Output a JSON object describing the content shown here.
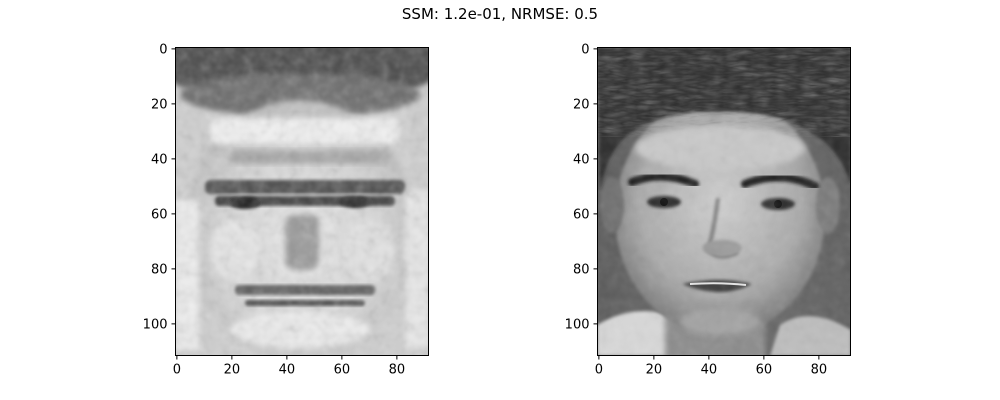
{
  "figure": {
    "title": "SSM: 1.2e-01, NRMSE: 0.5"
  },
  "chart_data": [
    {
      "type": "heatmap",
      "title": "",
      "xlabel": "",
      "ylabel": "",
      "xlim": [
        -0.5,
        91.5
      ],
      "ylim": [
        111.5,
        -0.5
      ],
      "x_ticks": [
        0,
        20,
        40,
        60,
        80
      ],
      "y_ticks": [
        0,
        20,
        40,
        60,
        80,
        100
      ],
      "colormap": "gray",
      "image_shape": [
        112,
        92
      ],
      "content": "reconstructed face"
    },
    {
      "type": "heatmap",
      "title": "",
      "xlabel": "",
      "ylabel": "",
      "xlim": [
        -0.5,
        91.5
      ],
      "ylim": [
        111.5,
        -0.5
      ],
      "x_ticks": [
        0,
        20,
        40,
        60,
        80
      ],
      "y_ticks": [
        0,
        20,
        40,
        60,
        80,
        100
      ],
      "colormap": "gray",
      "image_shape": [
        112,
        92
      ],
      "content": "original face"
    }
  ]
}
